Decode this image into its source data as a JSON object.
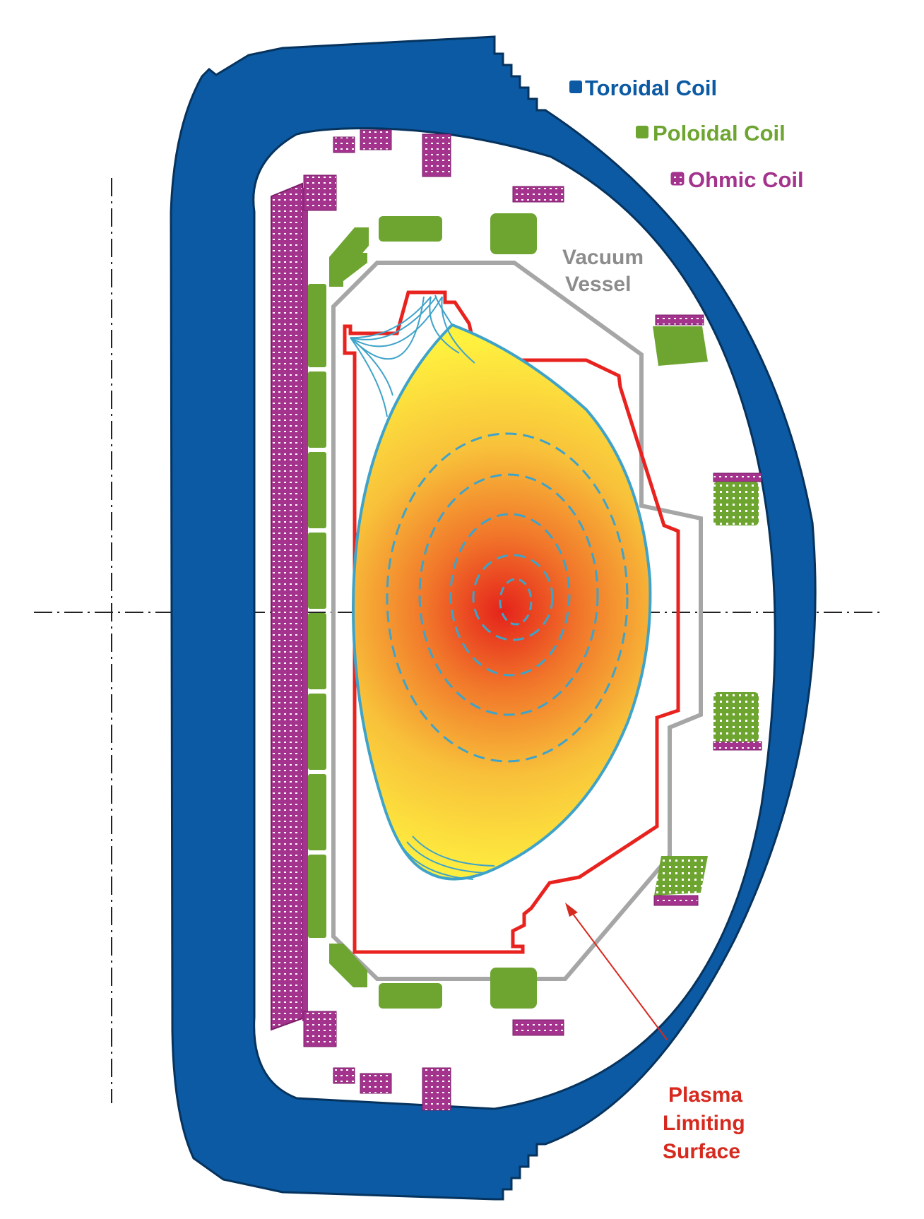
{
  "legend": {
    "toroidal": {
      "label": "Toroidal Coil",
      "color": "#0b5aa3"
    },
    "poloidal": {
      "label": "Poloidal Coil",
      "color": "#6ea531"
    },
    "ohmic": {
      "label": "Ohmic Coil",
      "color": "#a3338c"
    }
  },
  "labels": {
    "vessel_line1": "Vacuum",
    "vessel_line2": "Vessel",
    "limiter_line1": "Plasma",
    "limiter_line2": "Limiting",
    "limiter_line3": "Surface"
  },
  "colors": {
    "toroidal_coil": "#0b5aa3",
    "poloidal_coil": "#6ea531",
    "ohmic_coil": "#a3338c",
    "vacuum_vessel": "#a6a6a6",
    "plasma_limiting_surface": "#e8231f",
    "flux_surfaces": "#3fa3c9",
    "plasma_core": "#e5231b",
    "plasma_edge": "#fff23f",
    "vessel_label": "#8c8c8c",
    "limiter_label": "#d62a1f"
  },
  "icons": {
    "toroidal_legend": "blue-square-icon",
    "poloidal_legend": "green-square-icon",
    "ohmic_legend": "magenta-coil-square-icon"
  }
}
